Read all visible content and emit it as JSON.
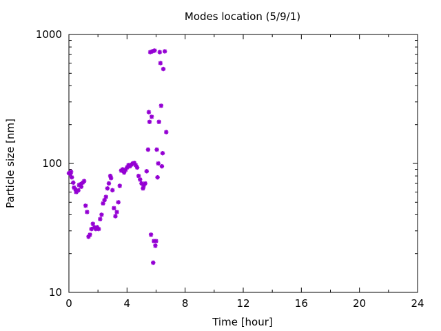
{
  "chart_data": {
    "type": "scatter",
    "title": "Modes location (5/9/1)",
    "xlabel": "Time [hour]",
    "ylabel": "Particle size [nm]",
    "xlim": [
      0,
      24
    ],
    "ylim": [
      10,
      1000
    ],
    "yscale": "log",
    "grid": false,
    "legend": "none",
    "marker_color": "#9400D3",
    "x_ticks": [
      "0",
      "4",
      "8",
      "12",
      "16",
      "20",
      "24"
    ],
    "y_ticks": [
      "10",
      "100",
      "1000"
    ],
    "points": [
      [
        0.0,
        84
      ],
      [
        0.1,
        83
      ],
      [
        0.15,
        86
      ],
      [
        0.2,
        78
      ],
      [
        0.3,
        71
      ],
      [
        0.35,
        65
      ],
      [
        0.45,
        63
      ],
      [
        0.5,
        60
      ],
      [
        0.55,
        61
      ],
      [
        0.65,
        62
      ],
      [
        0.7,
        68
      ],
      [
        0.8,
        69
      ],
      [
        0.85,
        66
      ],
      [
        0.95,
        71
      ],
      [
        1.05,
        73
      ],
      [
        1.15,
        47
      ],
      [
        1.25,
        42
      ],
      [
        1.35,
        27
      ],
      [
        1.45,
        28
      ],
      [
        1.55,
        31
      ],
      [
        1.65,
        34
      ],
      [
        1.75,
        32
      ],
      [
        1.85,
        31
      ],
      [
        1.95,
        32
      ],
      [
        2.05,
        31
      ],
      [
        2.15,
        37
      ],
      [
        2.25,
        40
      ],
      [
        2.35,
        49
      ],
      [
        2.45,
        52
      ],
      [
        2.55,
        55
      ],
      [
        2.65,
        64
      ],
      [
        2.75,
        70
      ],
      [
        2.85,
        80
      ],
      [
        2.9,
        77
      ],
      [
        3.0,
        62
      ],
      [
        3.1,
        45
      ],
      [
        3.2,
        39
      ],
      [
        3.3,
        42
      ],
      [
        3.4,
        50
      ],
      [
        3.5,
        67
      ],
      [
        3.6,
        88
      ],
      [
        3.7,
        90
      ],
      [
        3.8,
        85
      ],
      [
        3.9,
        89
      ],
      [
        4.0,
        93
      ],
      [
        4.1,
        97
      ],
      [
        4.2,
        95
      ],
      [
        4.3,
        98
      ],
      [
        4.4,
        100
      ],
      [
        4.5,
        101
      ],
      [
        4.6,
        97
      ],
      [
        4.7,
        93
      ],
      [
        4.8,
        80
      ],
      [
        4.9,
        75
      ],
      [
        5.0,
        70
      ],
      [
        5.1,
        64
      ],
      [
        5.15,
        67
      ],
      [
        5.25,
        70
      ],
      [
        5.35,
        87
      ],
      [
        5.45,
        128
      ],
      [
        5.5,
        250
      ],
      [
        5.55,
        210
      ],
      [
        5.6,
        730
      ],
      [
        5.65,
        28
      ],
      [
        5.7,
        230
      ],
      [
        5.75,
        740
      ],
      [
        5.8,
        17
      ],
      [
        5.85,
        25
      ],
      [
        5.9,
        750
      ],
      [
        5.95,
        23
      ],
      [
        6.0,
        25
      ],
      [
        6.05,
        128
      ],
      [
        6.1,
        78
      ],
      [
        6.15,
        100
      ],
      [
        6.2,
        210
      ],
      [
        6.25,
        730
      ],
      [
        6.3,
        600
      ],
      [
        6.35,
        280
      ],
      [
        6.4,
        95
      ],
      [
        6.45,
        120
      ],
      [
        6.5,
        540
      ],
      [
        6.6,
        740
      ],
      [
        6.7,
        175
      ]
    ]
  }
}
